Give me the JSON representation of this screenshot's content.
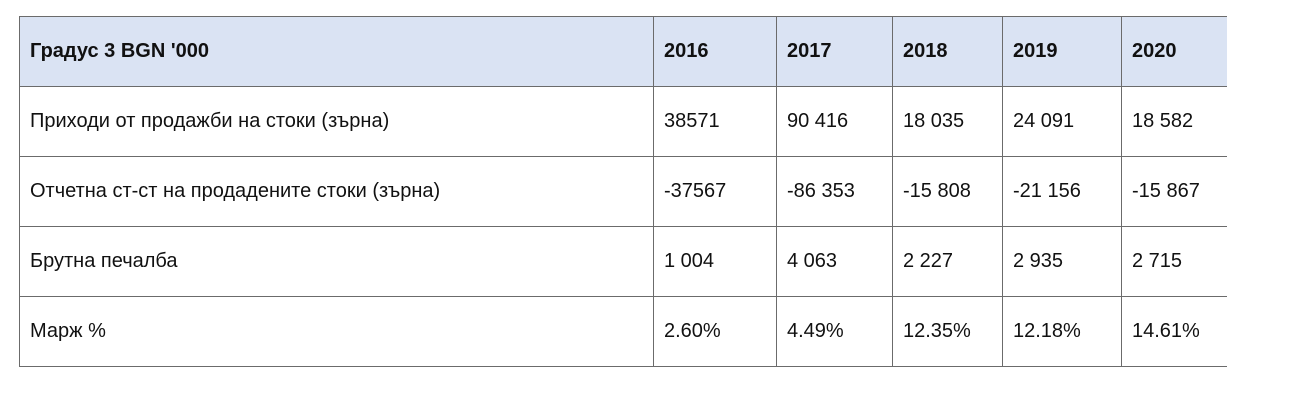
{
  "table": {
    "header": {
      "label": "Градус 3 BGN '000",
      "years": [
        "2016",
        "2017",
        "2018",
        "2019",
        "2020"
      ]
    },
    "rows": [
      {
        "label": "Приходи от продажби на стоки (зърна)",
        "values": [
          "38571",
          "90 416",
          "18 035",
          "24 091",
          "18 582"
        ]
      },
      {
        "label": "Отчетна ст-ст на продадените стоки (зърна)",
        "values": [
          "-37567",
          "-86 353",
          "-15 808",
          "-21 156",
          "-15 867"
        ]
      },
      {
        "label": "Брутна печалба",
        "values": [
          "1 004",
          "4 063",
          "2 227",
          "2 935",
          "2 715"
        ]
      },
      {
        "label": "Марж %",
        "values": [
          "2.60%",
          "4.49%",
          "12.35%",
          "12.18%",
          "14.61%"
        ]
      }
    ]
  }
}
